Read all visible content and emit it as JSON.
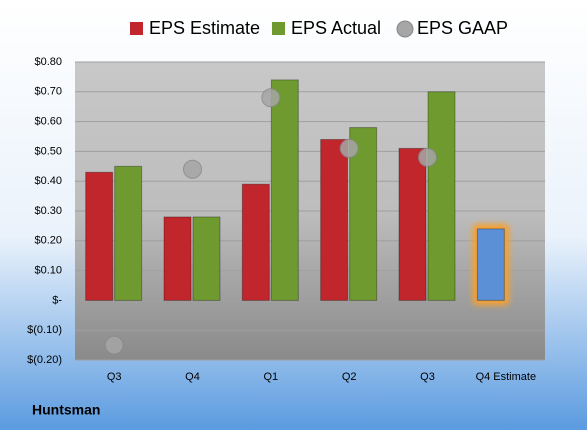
{
  "chart_data": {
    "type": "bar",
    "categories": [
      "Q3",
      "Q4",
      "Q1",
      "Q2",
      "Q3",
      "Q4 Estimate"
    ],
    "series": [
      {
        "name": "EPS Estimate",
        "color": "#c0262c",
        "colors": [
          "#c0262c",
          "#c0262c",
          "#c0262c",
          "#c0262c",
          "#c0262c",
          "#5b8fd6"
        ],
        "values": [
          0.43,
          0.28,
          0.39,
          0.54,
          0.51,
          0.24
        ]
      },
      {
        "name": "EPS Actual",
        "color": "#6f9a2f",
        "values": [
          0.45,
          0.28,
          0.74,
          0.58,
          0.7,
          null
        ]
      },
      {
        "name": "EPS GAAP",
        "color": "#a6a6a6",
        "marker": "circle",
        "values": [
          -0.15,
          0.44,
          0.68,
          0.51,
          0.48,
          null
        ]
      }
    ],
    "ylim": [
      -0.2,
      0.8
    ],
    "yticks": [
      {
        "value": -0.2,
        "label": "$(0.20)"
      },
      {
        "value": -0.1,
        "label": "$(0.10)"
      },
      {
        "value": 0,
        "label": "$-"
      },
      {
        "value": 0.1,
        "label": "$0.10"
      },
      {
        "value": 0.2,
        "label": "$0.20"
      },
      {
        "value": 0.3,
        "label": "$0.30"
      },
      {
        "value": 0.4,
        "label": "$0.40"
      },
      {
        "value": 0.5,
        "label": "$0.50"
      },
      {
        "value": 0.6,
        "label": "$0.60"
      },
      {
        "value": 0.7,
        "label": "$0.70"
      },
      {
        "value": 0.8,
        "label": "$0.80"
      }
    ],
    "grid": true,
    "legend": "top",
    "company": "Huntsman"
  }
}
